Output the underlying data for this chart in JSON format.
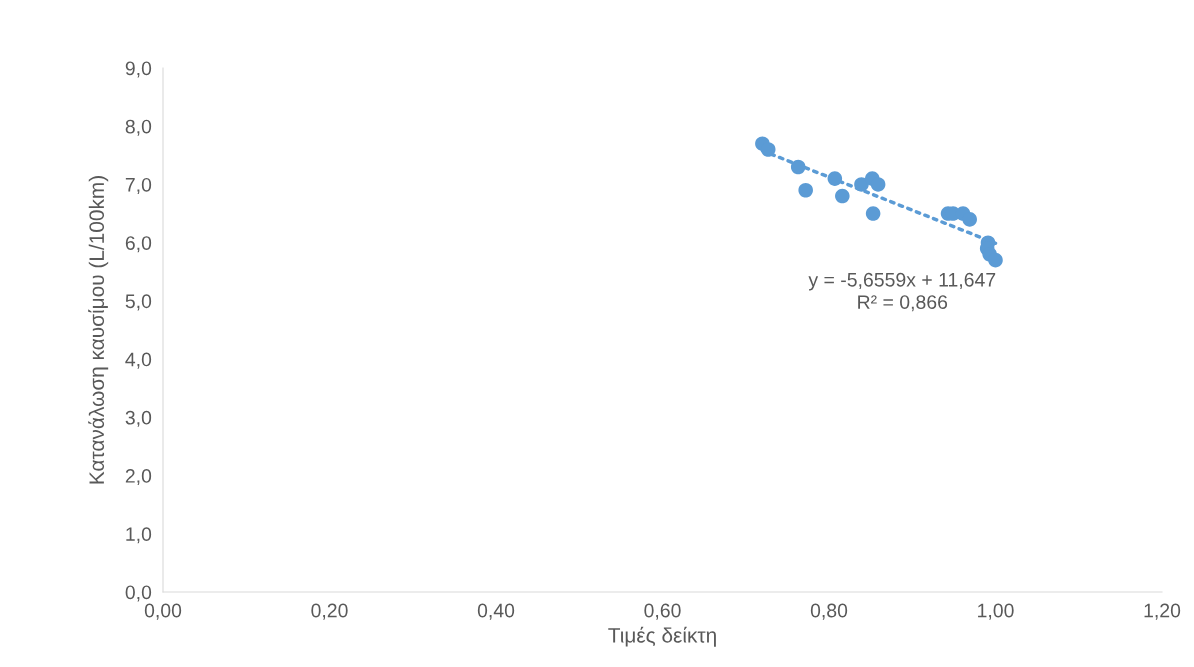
{
  "chart_data": {
    "type": "scatter",
    "xlabel": "Τιμές δείκτη",
    "ylabel": "Κατανάλωση καυσίμου (L/100km)",
    "x": [
      0.72,
      0.727,
      0.763,
      0.772,
      0.807,
      0.816,
      0.839,
      0.852,
      0.859,
      0.853,
      0.943,
      0.949,
      0.961,
      0.969,
      0.991,
      0.99,
      0.993,
      1.0
    ],
    "series": [
      {
        "color": "#5b9bd5",
        "marker": "circle",
        "values": [
          7.7,
          7.6,
          7.3,
          6.9,
          7.1,
          6.8,
          7.0,
          7.1,
          7.0,
          6.5,
          6.5,
          6.5,
          6.5,
          6.4,
          6.0,
          5.9,
          5.8,
          5.7
        ]
      },
      {
        "type": "line",
        "color": "#5b9bd5",
        "line_style": "dotted",
        "x": [
          0.72,
          1.0
        ],
        "values": [
          7.58,
          5.99
        ]
      }
    ],
    "annotations": [
      "y = -5,6559x + 11,647",
      "R² = 0,866"
    ],
    "xlim": [
      0,
      1.2
    ],
    "xticks": [
      {
        "value": 0,
        "label": "0,00"
      },
      {
        "value": 0.2,
        "label": "0,20"
      },
      {
        "value": 0.4,
        "label": "0,40"
      },
      {
        "value": 0.6,
        "label": "0,60"
      },
      {
        "value": 0.8,
        "label": "0,80"
      },
      {
        "value": 1.0,
        "label": "1,00"
      },
      {
        "value": 1.2,
        "label": "1,20"
      }
    ],
    "ylim": [
      0,
      9
    ],
    "yticks": [
      {
        "value": 0,
        "label": "0,0"
      },
      {
        "value": 1,
        "label": "1,0"
      },
      {
        "value": 2,
        "label": "2,0"
      },
      {
        "value": 3,
        "label": "3,0"
      },
      {
        "value": 4,
        "label": "4,0"
      },
      {
        "value": 5,
        "label": "5,0"
      },
      {
        "value": 6,
        "label": "6,0"
      },
      {
        "value": 7,
        "label": "7,0"
      },
      {
        "value": 8,
        "label": "8,0"
      },
      {
        "value": 9,
        "label": "9,0"
      }
    ],
    "grid": false,
    "legend": false
  }
}
